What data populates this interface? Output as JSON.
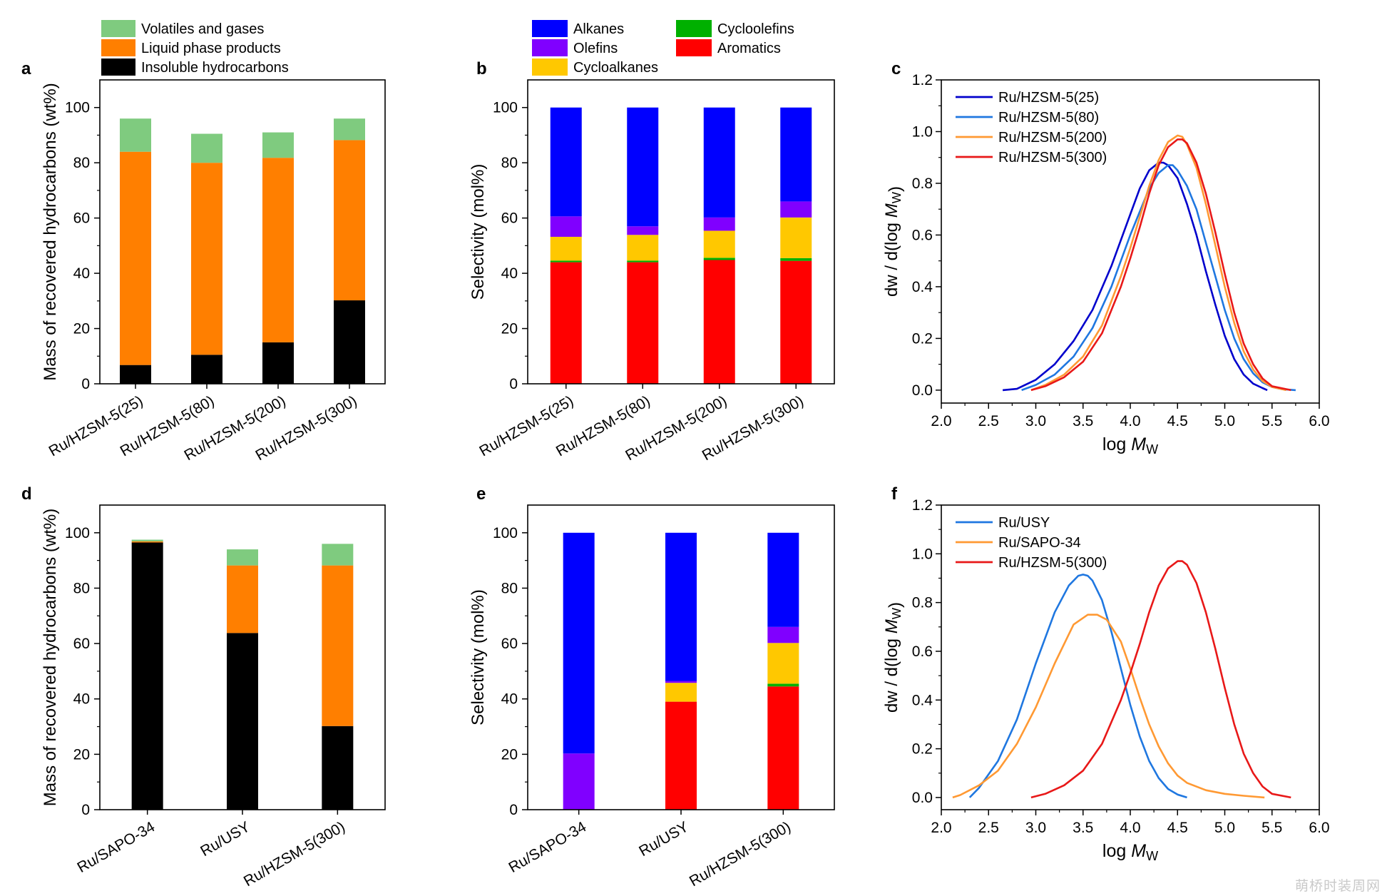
{
  "watermark": "萌桥时装周网",
  "chart_data": [
    {
      "panel": "a",
      "type": "bar",
      "stacked": true,
      "ylabel": "Mass of recovered hydrocarbons (wt%)",
      "ylim": [
        0,
        110
      ],
      "yticks": [
        0,
        20,
        40,
        60,
        80,
        100
      ],
      "categories": [
        "Ru/HZSM-5(25)",
        "Ru/HZSM-5(80)",
        "Ru/HZSM-5(200)",
        "Ru/HZSM-5(300)"
      ],
      "legend_position": "top",
      "series": [
        {
          "name": "Insoluble hydrocarbons",
          "color": "#000000",
          "values": [
            6.8,
            10.5,
            15.0,
            30.2
          ]
        },
        {
          "name": "Liquid phase products",
          "color": "#ff7f00",
          "values": [
            77.2,
            69.5,
            66.8,
            58.0
          ]
        },
        {
          "name": "Volatiles and gases",
          "color": "#7fcb7f",
          "values": [
            12.0,
            10.5,
            9.2,
            7.8
          ]
        }
      ]
    },
    {
      "panel": "b",
      "type": "bar",
      "stacked": true,
      "ylabel": "Selectivity (mol%)",
      "ylim": [
        0,
        110
      ],
      "yticks": [
        0,
        20,
        40,
        60,
        80,
        100
      ],
      "categories": [
        "Ru/HZSM-5(25)",
        "Ru/HZSM-5(80)",
        "Ru/HZSM-5(200)",
        "Ru/HZSM-5(300)"
      ],
      "legend_position": "top",
      "series": [
        {
          "name": "Aromatics",
          "color": "#ff0000",
          "values": [
            44.0,
            44.0,
            44.8,
            44.5
          ]
        },
        {
          "name": "Cycloolefins",
          "color": "#00b000",
          "values": [
            0.6,
            0.6,
            0.8,
            1.0
          ]
        },
        {
          "name": "Cycloalkanes",
          "color": "#ffc800",
          "values": [
            8.6,
            9.3,
            9.8,
            14.7
          ]
        },
        {
          "name": "Olefins",
          "color": "#8000ff",
          "values": [
            7.4,
            3.1,
            4.8,
            5.8
          ]
        },
        {
          "name": "Alkanes",
          "color": "#0000ff",
          "values": [
            39.4,
            43.0,
            39.8,
            34.0
          ]
        }
      ]
    },
    {
      "panel": "c",
      "type": "line",
      "xlabel": "log M_W",
      "ylabel": "dw / d(log M_W)",
      "xlim": [
        2.0,
        6.0
      ],
      "ylim": [
        -0.05,
        1.2
      ],
      "xticks": [
        2.0,
        2.5,
        3.0,
        3.5,
        4.0,
        4.5,
        5.0,
        5.5,
        6.0
      ],
      "yticks": [
        0.0,
        0.2,
        0.4,
        0.6,
        0.8,
        1.0,
        1.2
      ],
      "legend_position": "top-left",
      "series": [
        {
          "name": "Ru/HZSM-5(25)",
          "color": "#0000cc",
          "x": [
            2.65,
            2.8,
            3.0,
            3.2,
            3.4,
            3.6,
            3.8,
            4.0,
            4.1,
            4.2,
            4.3,
            4.35,
            4.4,
            4.5,
            4.6,
            4.7,
            4.8,
            4.9,
            5.0,
            5.1,
            5.2,
            5.3,
            5.4,
            5.45
          ],
          "y": [
            0.0,
            0.005,
            0.04,
            0.1,
            0.19,
            0.31,
            0.48,
            0.68,
            0.78,
            0.85,
            0.88,
            0.88,
            0.87,
            0.82,
            0.72,
            0.6,
            0.46,
            0.33,
            0.21,
            0.12,
            0.06,
            0.025,
            0.008,
            0.0
          ]
        },
        {
          "name": "Ru/HZSM-5(80)",
          "color": "#1f77e0",
          "x": [
            2.85,
            3.0,
            3.2,
            3.4,
            3.6,
            3.8,
            4.0,
            4.2,
            4.3,
            4.4,
            4.45,
            4.5,
            4.6,
            4.7,
            4.8,
            4.9,
            5.0,
            5.1,
            5.2,
            5.3,
            5.4,
            5.5,
            5.6,
            5.75
          ],
          "y": [
            0.0,
            0.02,
            0.06,
            0.13,
            0.24,
            0.4,
            0.6,
            0.78,
            0.84,
            0.87,
            0.87,
            0.85,
            0.79,
            0.7,
            0.57,
            0.44,
            0.31,
            0.2,
            0.12,
            0.065,
            0.03,
            0.012,
            0.004,
            0.0
          ]
        },
        {
          "name": "Ru/HZSM-5(200)",
          "color": "#ff9933",
          "x": [
            2.95,
            3.1,
            3.3,
            3.5,
            3.7,
            3.9,
            4.0,
            4.1,
            4.2,
            4.3,
            4.4,
            4.5,
            4.55,
            4.6,
            4.7,
            4.8,
            4.9,
            5.0,
            5.1,
            5.2,
            5.3,
            5.4,
            5.5,
            5.65
          ],
          "y": [
            0.0,
            0.02,
            0.06,
            0.13,
            0.25,
            0.44,
            0.55,
            0.67,
            0.79,
            0.89,
            0.96,
            0.985,
            0.98,
            0.95,
            0.86,
            0.72,
            0.56,
            0.4,
            0.26,
            0.15,
            0.08,
            0.035,
            0.012,
            0.0
          ]
        },
        {
          "name": "Ru/HZSM-5(300)",
          "color": "#e81818",
          "x": [
            2.95,
            3.1,
            3.3,
            3.5,
            3.7,
            3.9,
            4.0,
            4.1,
            4.2,
            4.3,
            4.4,
            4.5,
            4.55,
            4.6,
            4.7,
            4.8,
            4.9,
            5.0,
            5.1,
            5.2,
            5.3,
            5.4,
            5.5,
            5.7
          ],
          "y": [
            0.0,
            0.015,
            0.05,
            0.11,
            0.22,
            0.4,
            0.51,
            0.63,
            0.76,
            0.87,
            0.94,
            0.97,
            0.97,
            0.955,
            0.88,
            0.76,
            0.61,
            0.45,
            0.3,
            0.18,
            0.1,
            0.045,
            0.015,
            0.0
          ]
        }
      ]
    },
    {
      "panel": "d",
      "type": "bar",
      "stacked": true,
      "ylabel": "Mass of recovered hydrocarbons (wt%)",
      "ylim": [
        0,
        110
      ],
      "yticks": [
        0,
        20,
        40,
        60,
        80,
        100
      ],
      "categories": [
        "Ru/SAPO-34",
        "Ru/USY",
        "Ru/HZSM-5(300)"
      ],
      "series": [
        {
          "name": "Insoluble hydrocarbons",
          "color": "#000000",
          "values": [
            96.5,
            63.8,
            30.2
          ]
        },
        {
          "name": "Liquid phase products",
          "color": "#ff7f00",
          "values": [
            0.4,
            24.4,
            58.0
          ]
        },
        {
          "name": "Volatiles and gases",
          "color": "#7fcb7f",
          "values": [
            0.6,
            5.8,
            7.8
          ]
        }
      ]
    },
    {
      "panel": "e",
      "type": "bar",
      "stacked": true,
      "ylabel": "Selectivity (mol%)",
      "ylim": [
        0,
        110
      ],
      "yticks": [
        0,
        20,
        40,
        60,
        80,
        100
      ],
      "categories": [
        "Ru/SAPO-34",
        "Ru/USY",
        "Ru/HZSM-5(300)"
      ],
      "series": [
        {
          "name": "Aromatics",
          "color": "#ff0000",
          "values": [
            0.0,
            39.0,
            44.5
          ]
        },
        {
          "name": "Cycloolefins",
          "color": "#00b000",
          "values": [
            0.0,
            0.0,
            1.0
          ]
        },
        {
          "name": "Cycloalkanes",
          "color": "#ffc800",
          "values": [
            0.0,
            6.8,
            14.7
          ]
        },
        {
          "name": "Olefins",
          "color": "#8000ff",
          "values": [
            20.3,
            0.7,
            5.8
          ]
        },
        {
          "name": "Alkanes",
          "color": "#0000ff",
          "values": [
            79.7,
            53.5,
            34.0
          ]
        }
      ]
    },
    {
      "panel": "f",
      "type": "line",
      "xlabel": "log M_W",
      "ylabel": "dw / d(log M_W)",
      "xlim": [
        2.0,
        6.0
      ],
      "ylim": [
        -0.05,
        1.2
      ],
      "xticks": [
        2.0,
        2.5,
        3.0,
        3.5,
        4.0,
        4.5,
        5.0,
        5.5,
        6.0
      ],
      "yticks": [
        0.0,
        0.2,
        0.4,
        0.6,
        0.8,
        1.0,
        1.2
      ],
      "legend_position": "top-left",
      "series": [
        {
          "name": "Ru/USY",
          "color": "#1f77e0",
          "x": [
            2.3,
            2.4,
            2.6,
            2.8,
            3.0,
            3.2,
            3.35,
            3.45,
            3.5,
            3.55,
            3.6,
            3.7,
            3.8,
            3.9,
            4.0,
            4.1,
            4.2,
            4.3,
            4.4,
            4.5,
            4.6
          ],
          "y": [
            0.0,
            0.04,
            0.15,
            0.32,
            0.55,
            0.76,
            0.87,
            0.91,
            0.915,
            0.91,
            0.89,
            0.81,
            0.68,
            0.53,
            0.38,
            0.25,
            0.15,
            0.08,
            0.035,
            0.012,
            0.0
          ]
        },
        {
          "name": "Ru/SAPO-34",
          "color": "#ff9933",
          "x": [
            2.12,
            2.2,
            2.4,
            2.6,
            2.8,
            3.0,
            3.2,
            3.4,
            3.55,
            3.65,
            3.75,
            3.9,
            4.0,
            4.1,
            4.2,
            4.3,
            4.4,
            4.5,
            4.6,
            4.8,
            5.0,
            5.2,
            5.42
          ],
          "y": [
            0.0,
            0.01,
            0.05,
            0.11,
            0.22,
            0.37,
            0.55,
            0.71,
            0.75,
            0.75,
            0.73,
            0.64,
            0.53,
            0.41,
            0.3,
            0.21,
            0.14,
            0.09,
            0.06,
            0.03,
            0.015,
            0.007,
            0.0
          ]
        },
        {
          "name": "Ru/HZSM-5(300)",
          "color": "#e81818",
          "x": [
            2.95,
            3.1,
            3.3,
            3.5,
            3.7,
            3.9,
            4.0,
            4.1,
            4.2,
            4.3,
            4.4,
            4.5,
            4.55,
            4.6,
            4.7,
            4.8,
            4.9,
            5.0,
            5.1,
            5.2,
            5.3,
            5.4,
            5.5,
            5.7
          ],
          "y": [
            0.0,
            0.015,
            0.05,
            0.11,
            0.22,
            0.4,
            0.51,
            0.63,
            0.76,
            0.87,
            0.94,
            0.97,
            0.97,
            0.955,
            0.88,
            0.76,
            0.61,
            0.45,
            0.3,
            0.18,
            0.1,
            0.045,
            0.015,
            0.0
          ]
        }
      ]
    }
  ]
}
